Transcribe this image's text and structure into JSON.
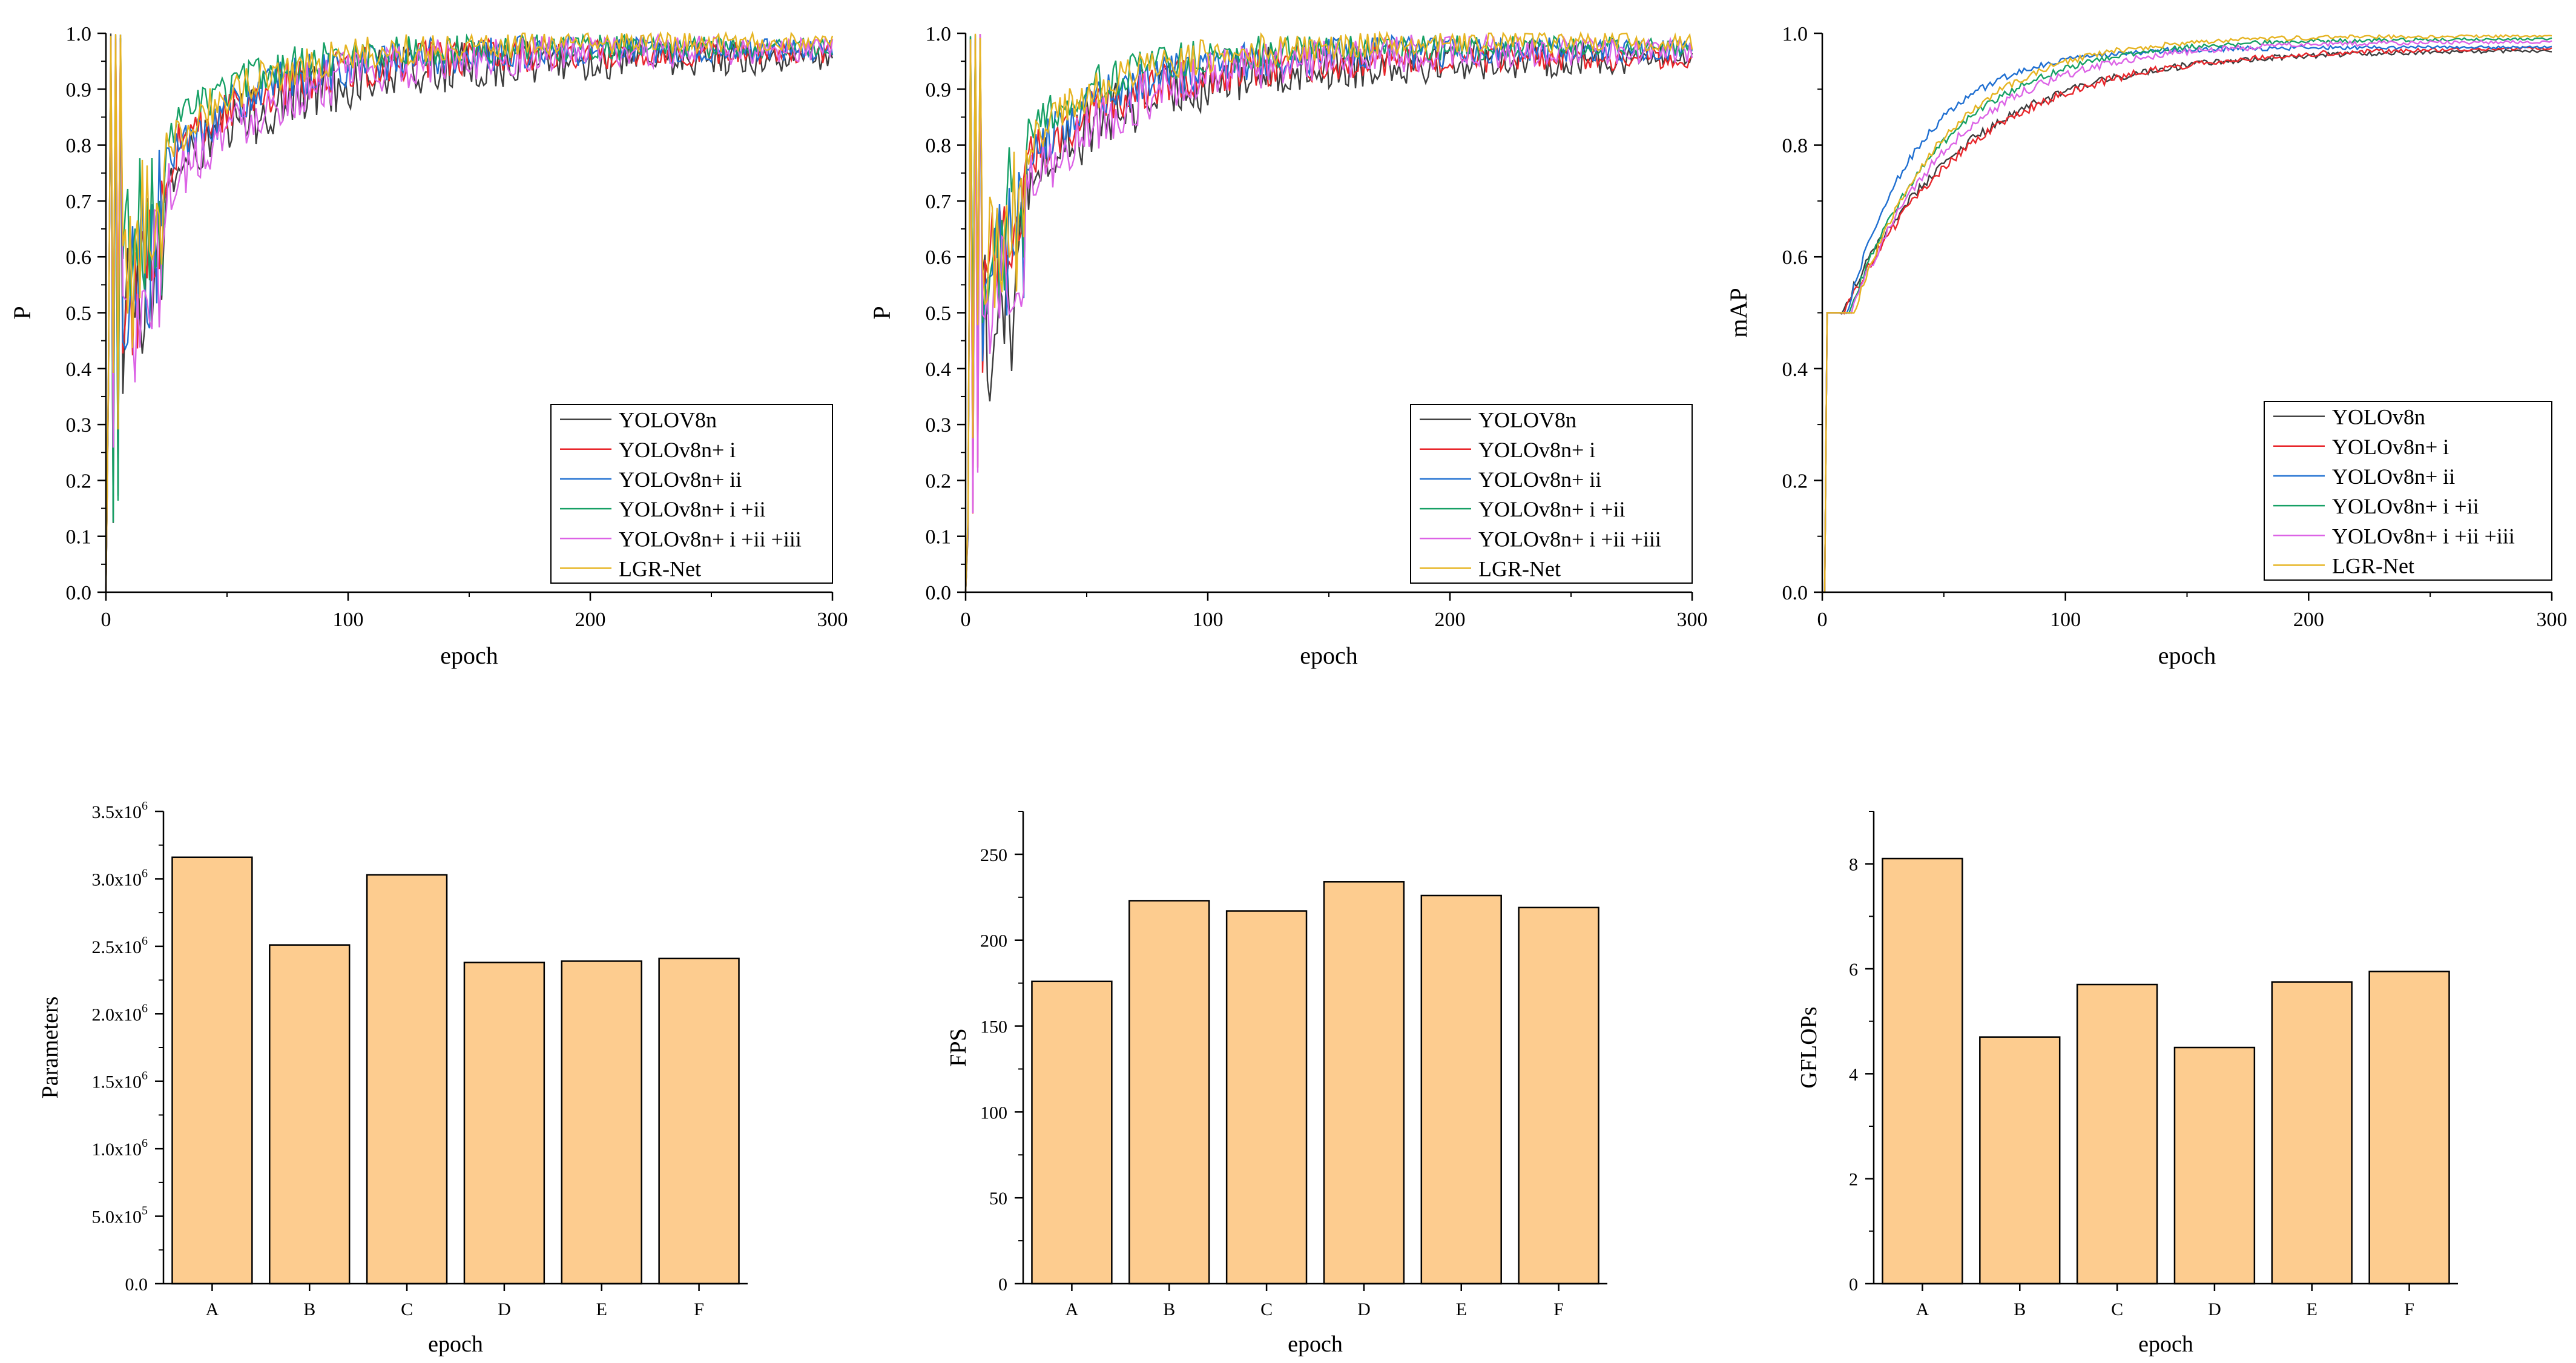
{
  "colors": {
    "bar_fill": "#FDCC8F",
    "axis": "#000000",
    "series": [
      "#3d3d3d",
      "#e8262b",
      "#1f6fd1",
      "#16a065",
      "#dc63e6",
      "#e6b422"
    ]
  },
  "chart_data": [
    {
      "id": "p1",
      "type": "line",
      "xlabel": "epoch",
      "ylabel": "P",
      "xlim": [
        0,
        300
      ],
      "ylim": [
        0,
        1.0
      ],
      "xticks": [
        "0",
        "100",
        "200",
        "300"
      ],
      "yticks": [
        "0.0",
        "0.1",
        "0.2",
        "0.3",
        "0.4",
        "0.5",
        "0.6",
        "0.7",
        "0.8",
        "0.9",
        "1.0"
      ],
      "legend_position": "bottom-right",
      "series": [
        {
          "name": "YOLOV8n",
          "final": 0.955,
          "tau": 45,
          "noise": 0.04,
          "start": 0.62
        },
        {
          "name": "YOLOv8n+ i",
          "final": 0.965,
          "tau": 40,
          "noise": 0.03,
          "start": 0.66
        },
        {
          "name": "YOLOv8n+ ii",
          "final": 0.97,
          "tau": 40,
          "noise": 0.03,
          "start": 0.66
        },
        {
          "name": "YOLOv8n+ i +ii",
          "final": 0.975,
          "tau": 33,
          "noise": 0.025,
          "start": 0.7
        },
        {
          "name": "YOLOv8n+ i +ii +iii",
          "final": 0.97,
          "tau": 45,
          "noise": 0.035,
          "start": 0.6
        },
        {
          "name": "LGR-Net",
          "final": 0.985,
          "tau": 38,
          "noise": 0.025,
          "start": 0.68
        }
      ]
    },
    {
      "id": "p2",
      "type": "line",
      "xlabel": "epoch",
      "ylabel": "P",
      "xlim": [
        0,
        300
      ],
      "ylim": [
        0,
        1.0
      ],
      "xticks": [
        "0",
        "100",
        "200",
        "300"
      ],
      "yticks": [
        "0.0",
        "0.1",
        "0.2",
        "0.3",
        "0.4",
        "0.5",
        "0.6",
        "0.7",
        "0.8",
        "0.9",
        "1.0"
      ],
      "legend_position": "bottom-right",
      "series": [
        {
          "name": "YOLOV8n",
          "final": 0.955,
          "tau": 45,
          "noise": 0.04,
          "start": 0.62
        },
        {
          "name": "YOLOv8n+ i",
          "final": 0.955,
          "tau": 40,
          "noise": 0.03,
          "start": 0.66
        },
        {
          "name": "YOLOv8n+ ii",
          "final": 0.97,
          "tau": 40,
          "noise": 0.03,
          "start": 0.66
        },
        {
          "name": "YOLOv8n+ i +ii",
          "final": 0.975,
          "tau": 33,
          "noise": 0.025,
          "start": 0.7
        },
        {
          "name": "YOLOv8n+ i +ii +iii",
          "final": 0.97,
          "tau": 45,
          "noise": 0.035,
          "start": 0.6
        },
        {
          "name": "LGR-Net",
          "final": 0.985,
          "tau": 38,
          "noise": 0.025,
          "start": 0.68
        }
      ]
    },
    {
      "id": "map",
      "type": "line",
      "xlabel": "epoch",
      "ylabel": "mAP",
      "xlim": [
        0,
        300
      ],
      "ylim": [
        0,
        1.0
      ],
      "xticks": [
        "0",
        "100",
        "200",
        "300"
      ],
      "yticks": [
        "0.0",
        "0.2",
        "0.4",
        "0.6",
        "0.8",
        "1.0"
      ],
      "legend_position": "bottom-right",
      "series": [
        {
          "name": "YOLOv8n",
          "final": 0.97,
          "tau": 50,
          "noise": 0.01,
          "start": 0.5
        },
        {
          "name": "YOLOv8n+ i",
          "final": 0.975,
          "tau": 52,
          "noise": 0.01,
          "start": 0.5
        },
        {
          "name": "YOLOv8n+ ii",
          "final": 0.975,
          "tau": 30,
          "noise": 0.008,
          "start": 0.5
        },
        {
          "name": "YOLOv8n+ i +ii",
          "final": 0.99,
          "tau": 40,
          "noise": 0.008,
          "start": 0.5
        },
        {
          "name": "YOLOv8n+ i +ii +iii",
          "final": 0.985,
          "tau": 42,
          "noise": 0.01,
          "start": 0.5
        },
        {
          "name": "LGR-Net",
          "final": 0.995,
          "tau": 37,
          "noise": 0.008,
          "start": 0.5
        }
      ]
    },
    {
      "id": "params",
      "type": "bar",
      "xlabel": "epoch",
      "ylabel": "Parameters",
      "ylim": [
        0,
        3500000
      ],
      "categories": [
        "A",
        "B",
        "C",
        "D",
        "E",
        "F"
      ],
      "values": [
        3160000,
        2510000,
        3030000,
        2380000,
        2390000,
        2410000
      ],
      "yticks": [
        {
          "value": 0,
          "label": "0.0"
        },
        {
          "value": 500000,
          "label": "5.0x10",
          "exp": "5"
        },
        {
          "value": 1000000,
          "label": "1.0x10",
          "exp": "6"
        },
        {
          "value": 1500000,
          "label": "1.5x10",
          "exp": "6"
        },
        {
          "value": 2000000,
          "label": "2.0x10",
          "exp": "6"
        },
        {
          "value": 2500000,
          "label": "2.5x10",
          "exp": "6"
        },
        {
          "value": 3000000,
          "label": "3.0x10",
          "exp": "6"
        },
        {
          "value": 3500000,
          "label": "3.5x10",
          "exp": "6"
        }
      ]
    },
    {
      "id": "fps",
      "type": "bar",
      "xlabel": "epoch",
      "ylabel": "FPS",
      "ylim": [
        0,
        275
      ],
      "categories": [
        "A",
        "B",
        "C",
        "D",
        "E",
        "F"
      ],
      "values": [
        176,
        223,
        217,
        234,
        226,
        219
      ],
      "yticks": [
        {
          "value": 0,
          "label": "0"
        },
        {
          "value": 50,
          "label": "50"
        },
        {
          "value": 100,
          "label": "100"
        },
        {
          "value": 150,
          "label": "150"
        },
        {
          "value": 200,
          "label": "200"
        },
        {
          "value": 250,
          "label": "250"
        }
      ]
    },
    {
      "id": "gflops",
      "type": "bar",
      "xlabel": "epoch",
      "ylabel": "GFLOPs",
      "ylim": [
        0,
        9
      ],
      "categories": [
        "A",
        "B",
        "C",
        "D",
        "E",
        "F"
      ],
      "values": [
        8.1,
        4.7,
        5.7,
        4.5,
        5.75,
        5.95
      ],
      "yticks": [
        {
          "value": 0,
          "label": "0"
        },
        {
          "value": 2,
          "label": "2"
        },
        {
          "value": 4,
          "label": "4"
        },
        {
          "value": 6,
          "label": "6"
        },
        {
          "value": 8,
          "label": "8"
        }
      ]
    }
  ]
}
